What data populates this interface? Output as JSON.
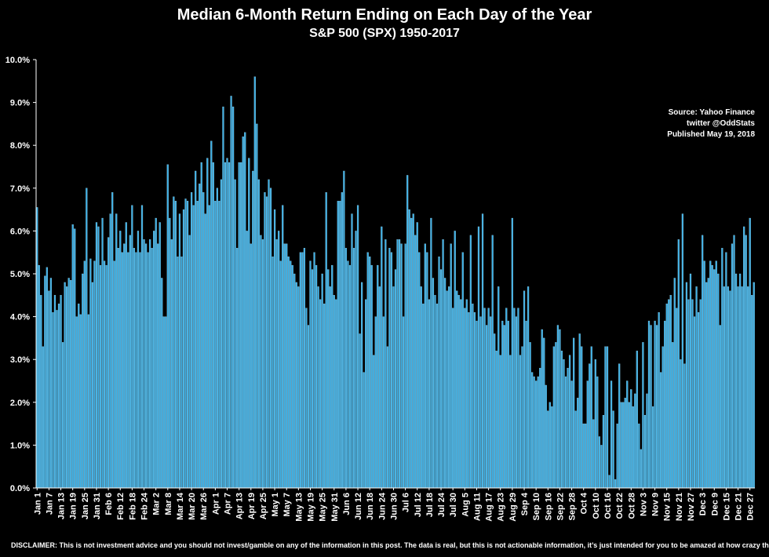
{
  "chart_data": {
    "type": "bar",
    "title": "Median 6-Month Return Ending on Each Day of the Year",
    "subtitle": "S&P 500 (SPX) 1950-2017",
    "ylim": [
      0,
      10
    ],
    "yticks": [
      "0.0%",
      "1.0%",
      "2.0%",
      "3.0%",
      "4.0%",
      "5.0%",
      "6.0%",
      "7.0%",
      "8.0%",
      "9.0%",
      "10.0%"
    ],
    "xticks": [
      "Jan 1",
      "Jan 7",
      "Jan 13",
      "Jan 19",
      "Jan 25",
      "Jan 31",
      "Feb 6",
      "Feb 12",
      "Feb 18",
      "Feb 24",
      "Mar 2",
      "Mar 8",
      "Mar 14",
      "Mar 20",
      "Mar 26",
      "Apr 1",
      "Apr 7",
      "Apr 13",
      "Apr 19",
      "Apr 25",
      "May 1",
      "May 7",
      "May 13",
      "May 19",
      "May 25",
      "May 31",
      "Jun 6",
      "Jun 12",
      "Jun 18",
      "Jun 24",
      "Jun 30",
      "Jul 6",
      "Jul 12",
      "Jul 18",
      "Jul 24",
      "Jul 30",
      "Aug 5",
      "Aug 11",
      "Aug 17",
      "Aug 23",
      "Aug 29",
      "Sep 4",
      "Sep 10",
      "Sep 16",
      "Sep 22",
      "Sep 28",
      "Oct 4",
      "Oct 10",
      "Oct 16",
      "Oct 22",
      "Oct 28",
      "Nov 3",
      "Nov 9",
      "Nov 15",
      "Nov 21",
      "Nov 27",
      "Dec 3",
      "Dec 9",
      "Dec 15",
      "Dec 21",
      "Dec 27"
    ],
    "values": [
      6.55,
      5.2,
      4.5,
      3.3,
      4.95,
      5.15,
      4.6,
      4.9,
      4.1,
      4.5,
      4.15,
      4.3,
      4.5,
      3.4,
      4.8,
      4.7,
      4.9,
      4.85,
      6.15,
      6.05,
      4.0,
      4.3,
      4.05,
      5.0,
      5.3,
      7.0,
      4.05,
      5.35,
      4.8,
      5.3,
      6.2,
      6.1,
      5.2,
      6.3,
      5.3,
      5.2,
      5.85,
      6.4,
      6.9,
      5.3,
      6.4,
      5.6,
      6.0,
      5.5,
      5.7,
      6.2,
      5.5,
      5.9,
      6.6,
      5.6,
      5.5,
      6.0,
      5.5,
      6.6,
      5.8,
      5.7,
      5.5,
      5.8,
      5.6,
      6.0,
      6.3,
      5.7,
      6.2,
      4.9,
      4.0,
      4.0,
      7.55,
      6.3,
      5.8,
      6.8,
      6.7,
      5.4,
      6.4,
      5.4,
      6.5,
      6.75,
      6.7,
      5.9,
      6.9,
      6.6,
      7.4,
      6.7,
      7.1,
      7.6,
      6.9,
      6.4,
      7.7,
      6.6,
      8.1,
      7.6,
      6.7,
      7.0,
      6.7,
      7.2,
      8.9,
      7.6,
      7.7,
      7.6,
      9.15,
      8.9,
      7.2,
      5.6,
      7.6,
      7.6,
      8.2,
      8.3,
      6.0,
      7.7,
      5.7,
      7.4,
      9.6,
      8.5,
      7.2,
      5.9,
      5.8,
      6.9,
      6.8,
      7.2,
      7.0,
      5.4,
      6.5,
      5.8,
      6.0,
      5.3,
      6.6,
      5.7,
      5.7,
      5.4,
      5.3,
      5.2,
      5.0,
      4.8,
      4.7,
      5.5,
      5.5,
      5.6,
      4.2,
      3.8,
      5.3,
      5.1,
      5.5,
      5.2,
      4.7,
      4.4,
      5.0,
      4.3,
      6.9,
      5.1,
      4.7,
      5.2,
      4.5,
      4.4,
      6.7,
      6.7,
      6.9,
      7.4,
      5.6,
      5.3,
      5.2,
      6.4,
      5.6,
      6.0,
      6.6,
      3.6,
      4.8,
      2.7,
      4.4,
      5.5,
      5.4,
      5.2,
      3.1,
      4.0,
      5.2,
      4.7,
      6.1,
      4.0,
      5.8,
      3.3,
      5.6,
      5.5,
      4.7,
      5.1,
      5.8,
      5.8,
      5.7,
      4.0,
      5.7,
      7.3,
      6.5,
      6.3,
      6.4,
      5.9,
      6.2,
      5.5,
      4.7,
      4.3,
      5.7,
      5.5,
      4.4,
      6.3,
      4.9,
      4.5,
      4.3,
      5.4,
      5.1,
      5.8,
      4.9,
      4.6,
      4.7,
      5.7,
      4.2,
      6.0,
      4.6,
      4.5,
      4.4,
      5.5,
      4.2,
      4.4,
      4.1,
      5.9,
      4.3,
      4.1,
      3.9,
      6.1,
      4.0,
      6.4,
      4.2,
      3.8,
      4.2,
      4.0,
      5.9,
      3.6,
      3.2,
      4.7,
      3.1,
      3.9,
      3.8,
      4.2,
      3.9,
      3.1,
      6.3,
      4.2,
      4.0,
      4.2,
      3.1,
      3.3,
      4.6,
      3.9,
      4.7,
      3.4,
      2.7,
      2.6,
      2.5,
      2.6,
      2.8,
      3.7,
      3.5,
      2.4,
      1.8,
      2.0,
      1.9,
      3.3,
      3.4,
      3.8,
      3.7,
      3.2,
      3.0,
      2.6,
      2.8,
      3.1,
      2.5,
      3.5,
      1.8,
      2.1,
      3.6,
      3.3,
      1.5,
      1.5,
      2.5,
      2.9,
      3.3,
      1.6,
      3.0,
      2.6,
      1.2,
      1.0,
      1.7,
      3.3,
      3.3,
      0.3,
      2.5,
      1.8,
      0.2,
      1.5,
      2.9,
      2.0,
      2.0,
      2.1,
      2.5,
      2.0,
      2.3,
      1.9,
      2.2,
      3.2,
      1.5,
      0.9,
      3.4,
      1.7,
      2.2,
      3.9,
      3.8,
      1.9,
      3.9,
      3.8,
      4.1,
      2.7,
      3.3,
      3.9,
      4.3,
      4.4,
      4.5,
      3.4,
      4.9,
      4.2,
      5.8,
      3.0,
      6.4,
      2.9,
      4.8,
      4.4,
      5.0,
      4.4,
      4.0,
      4.7,
      4.1,
      4.4,
      5.9,
      5.3,
      4.8,
      4.9,
      5.3,
      5.2,
      5.1,
      5.3,
      5.0,
      3.8,
      5.6,
      4.7,
      5.5,
      4.7,
      4.6,
      5.7,
      5.9,
      5.0,
      4.7,
      5.0,
      4.7,
      6.1,
      5.9,
      4.7,
      6.3,
      4.5,
      4.8
    ],
    "annotations": [
      "Source: Yahoo Finance",
      "twitter @OddStats",
      "Published May 19, 2018"
    ],
    "disclaimer": "DISCLAIMER: This is not investment advice and you should not invest/gamble on any of the information in this post.   The data is real, but this is not actionable information, it’s just intended for you to be amazed at how crazy the market is.",
    "colors": {
      "bar": "#3ab0e6",
      "bar_edge": "#9fd9f5",
      "background": "#000000",
      "text": "#ffffff"
    }
  }
}
